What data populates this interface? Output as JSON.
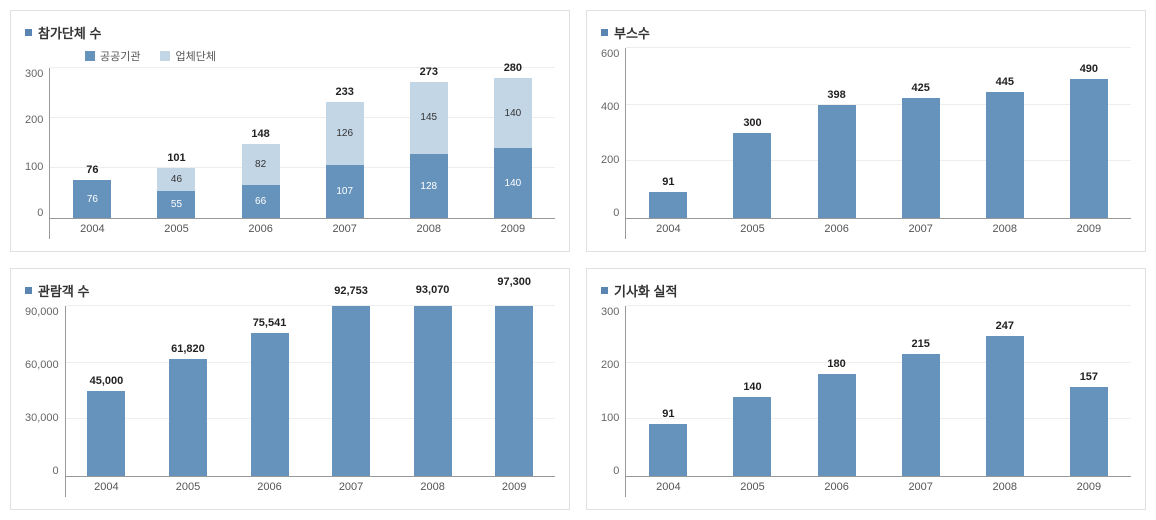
{
  "colors": {
    "series_primary": "#6693bb",
    "series_secondary": "#c3d6e6",
    "grid": "#eeeeee",
    "axis": "#999999",
    "text_dark": "#333333",
    "bullet": "#5a85b0"
  },
  "panels": [
    {
      "title": "참가단체 수",
      "type": "stacked-bar",
      "legend": [
        {
          "label": "공공기관",
          "color": "#6693bb"
        },
        {
          "label": "업체단체",
          "color": "#c3d6e6"
        }
      ],
      "y": {
        "min": 0,
        "max": 300,
        "step": 100,
        "ticks": [
          "0",
          "100",
          "200",
          "300"
        ]
      },
      "categories": [
        "2004",
        "2005",
        "2006",
        "2007",
        "2008",
        "2009"
      ],
      "series": [
        {
          "name": "공공기관",
          "color": "#6693bb",
          "text": "light",
          "values": [
            76,
            55,
            66,
            107,
            128,
            140
          ]
        },
        {
          "name": "업체단체",
          "color": "#c3d6e6",
          "text": "dark",
          "values": [
            0,
            46,
            82,
            126,
            145,
            140
          ]
        }
      ],
      "totals": [
        76,
        101,
        148,
        233,
        273,
        280
      ]
    },
    {
      "title": "부스수",
      "type": "bar",
      "y": {
        "min": 0,
        "max": 600,
        "step": 200,
        "ticks": [
          "0",
          "200",
          "400",
          "600"
        ]
      },
      "categories": [
        "2004",
        "2005",
        "2006",
        "2007",
        "2008",
        "2009"
      ],
      "series": [
        {
          "name": "value",
          "color": "#6693bb",
          "values": [
            91,
            300,
            398,
            425,
            445,
            490
          ]
        }
      ],
      "totals": [
        91,
        300,
        398,
        425,
        445,
        490
      ]
    },
    {
      "title": "관람객 수",
      "type": "bar",
      "y": {
        "min": 0,
        "max": 90000,
        "step": 30000,
        "ticks": [
          "0",
          "30,000",
          "60,000",
          "90,000"
        ]
      },
      "categories": [
        "2004",
        "2005",
        "2006",
        "2007",
        "2008",
        "2009"
      ],
      "series": [
        {
          "name": "value",
          "color": "#6693bb",
          "values": [
            45000,
            61820,
            75541,
            92753,
            93070,
            97300
          ]
        }
      ],
      "totals_fmt": [
        "45,000",
        "61,820",
        "75,541",
        "92,753",
        "93,070",
        "97,300"
      ],
      "totals": [
        45000,
        61820,
        75541,
        92753,
        93070,
        97300
      ]
    },
    {
      "title": "기사화 실적",
      "type": "bar",
      "y": {
        "min": 0,
        "max": 300,
        "step": 100,
        "ticks": [
          "0",
          "100",
          "200",
          "300"
        ]
      },
      "categories": [
        "2004",
        "2005",
        "2006",
        "2007",
        "2008",
        "2009"
      ],
      "series": [
        {
          "name": "value",
          "color": "#6693bb",
          "values": [
            91,
            140,
            180,
            215,
            247,
            157
          ]
        }
      ],
      "totals": [
        91,
        140,
        180,
        215,
        247,
        157
      ]
    }
  ]
}
